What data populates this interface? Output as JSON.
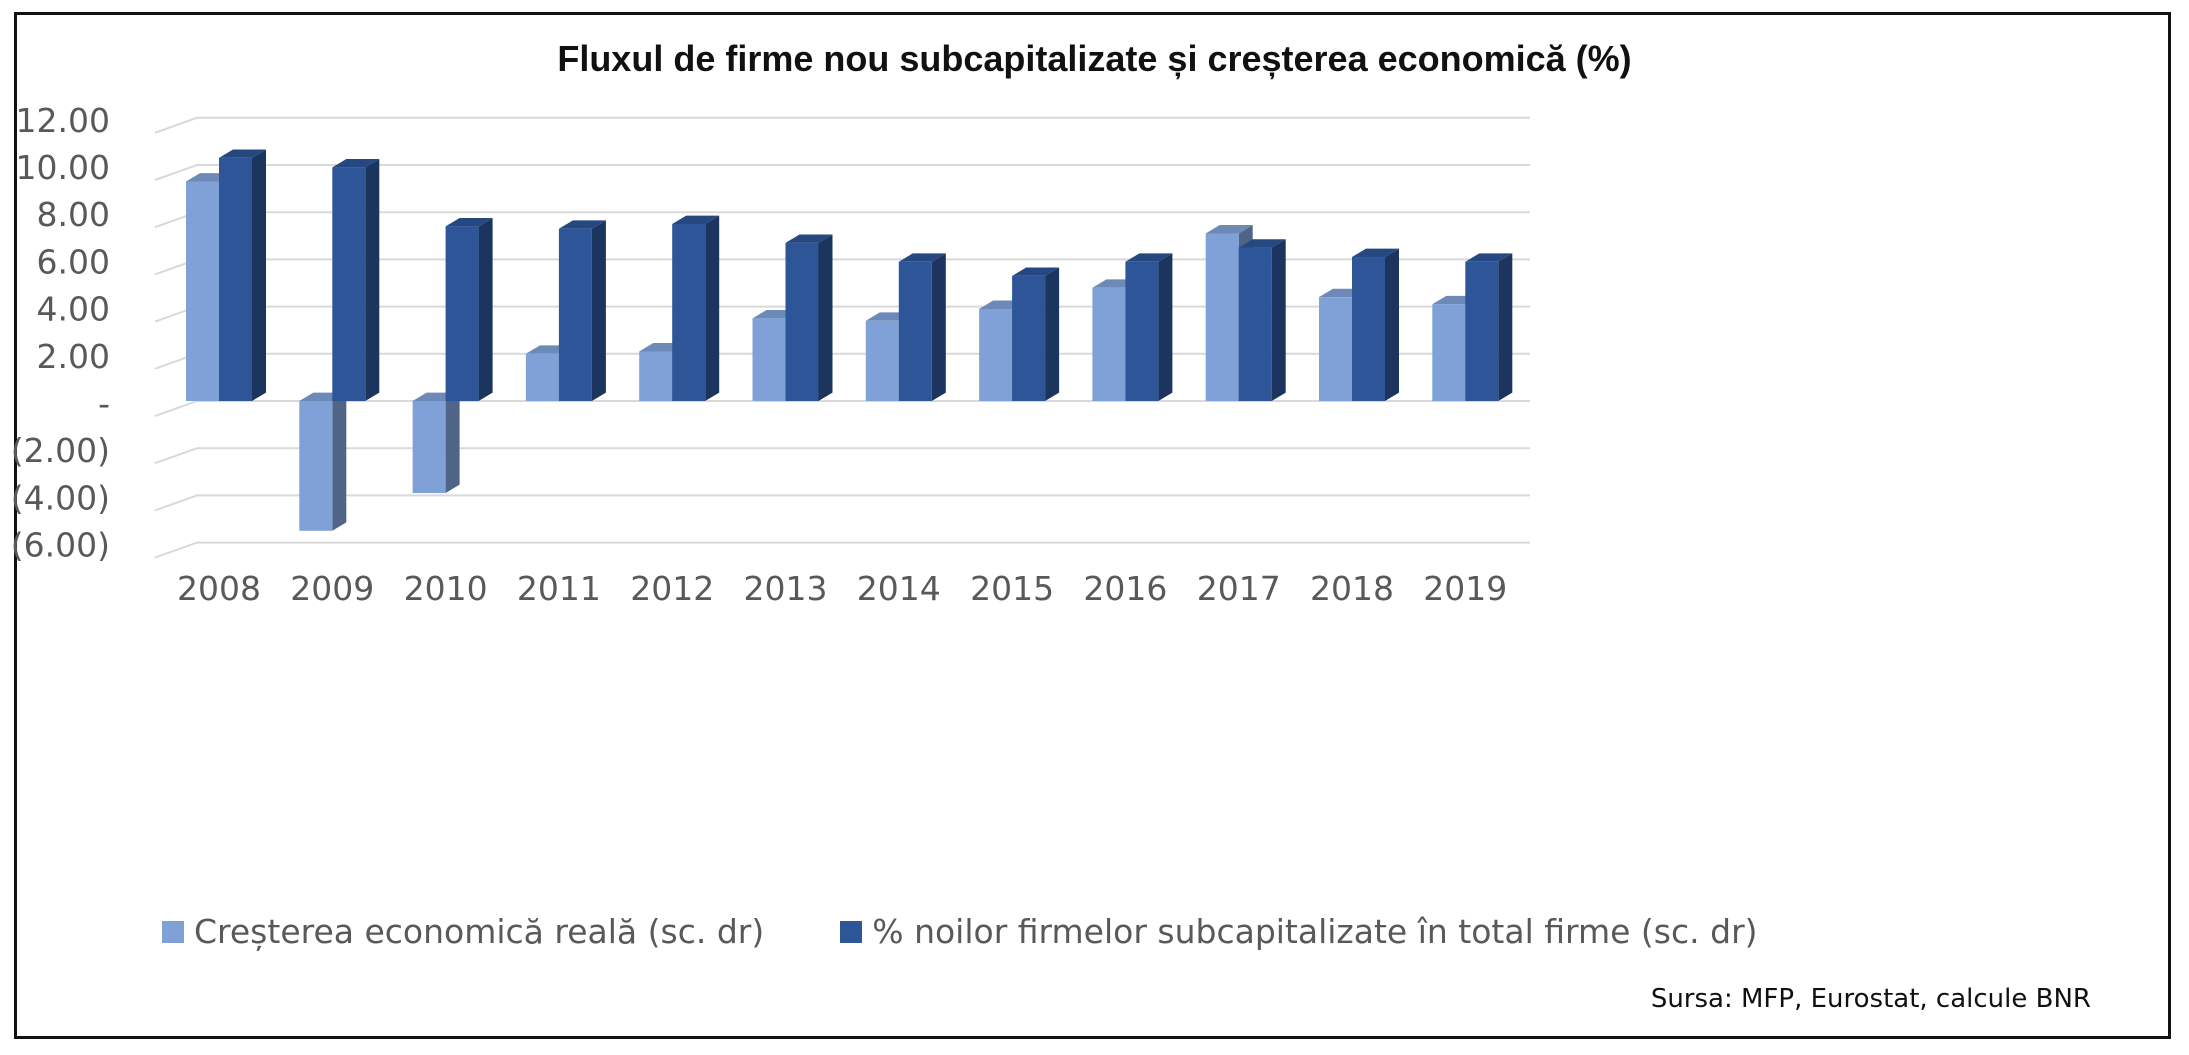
{
  "chart_data": {
    "type": "bar",
    "title": "Fluxul de firme nou subcapitalizate și creșterea economică (%)",
    "categories": [
      "2008",
      "2009",
      "2010",
      "2011",
      "2012",
      "2013",
      "2014",
      "2015",
      "2016",
      "2017",
      "2018",
      "2019"
    ],
    "series": [
      {
        "name": "Creșterea economică reală (sc. dr)",
        "color": "#7FA1D8",
        "values": [
          9.3,
          -5.5,
          -3.9,
          2.0,
          2.1,
          3.5,
          3.4,
          3.9,
          4.8,
          7.1,
          4.4,
          4.1
        ]
      },
      {
        "name": "% noilor firmelor subcapitalizate în total firme (sc. dr)",
        "color": "#2D5597",
        "values": [
          10.3,
          9.9,
          7.4,
          7.3,
          7.5,
          6.7,
          5.9,
          5.3,
          5.9,
          6.5,
          6.1,
          5.9
        ]
      }
    ],
    "yticks": [
      {
        "value": 12,
        "label": "12.00"
      },
      {
        "value": 10,
        "label": "10.00"
      },
      {
        "value": 8,
        "label": "8.00"
      },
      {
        "value": 6,
        "label": "6.00"
      },
      {
        "value": 4,
        "label": "4.00"
      },
      {
        "value": 2,
        "label": "2.00"
      },
      {
        "value": 0,
        "label": "-"
      },
      {
        "value": -2,
        "label": "(2.00)"
      },
      {
        "value": -4,
        "label": "(4.00)"
      },
      {
        "value": -6,
        "label": "(6.00)"
      }
    ],
    "ylim": [
      -6,
      12
    ],
    "grid": true,
    "legend_position": "bottom",
    "source": "Sursa: MFP, Eurostat, calcule BNR"
  }
}
